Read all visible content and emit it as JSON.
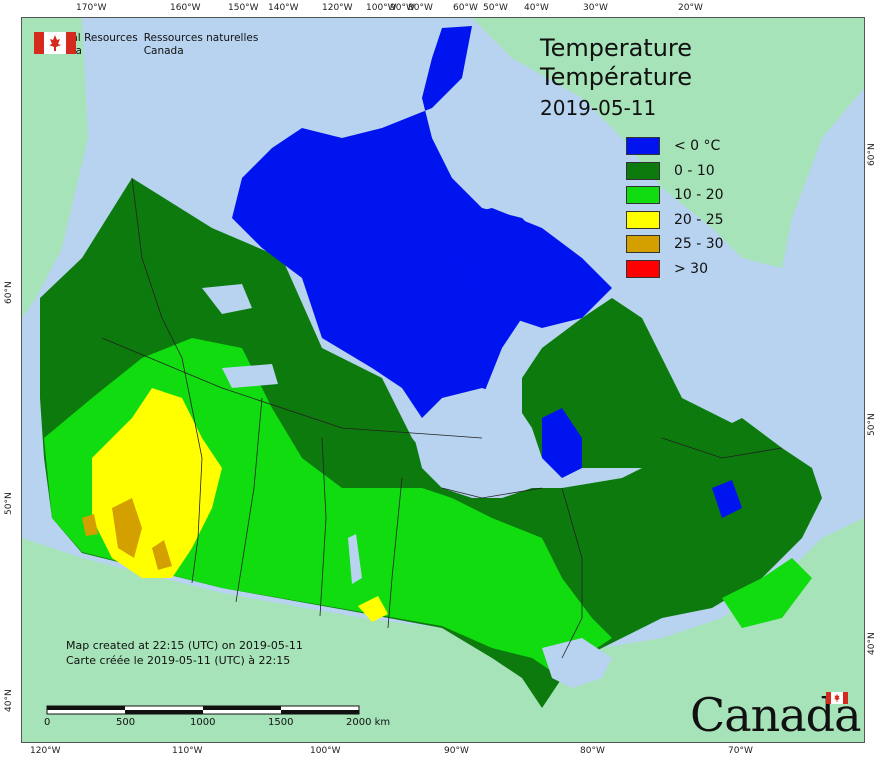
{
  "header": {
    "org_en": [
      "Natural Resources",
      "Canada"
    ],
    "org_fr": [
      "Ressources naturelles",
      "Canada"
    ]
  },
  "title": {
    "line1": "Temperature",
    "line2": "Température",
    "date": "2019-05-11"
  },
  "legend": {
    "items": [
      {
        "label": "< 0 °C",
        "color": "#0014f0"
      },
      {
        "label": "0 - 10",
        "color": "#0d7a0d"
      },
      {
        "label": "10 - 20",
        "color": "#10dc10"
      },
      {
        "label": "20 - 25",
        "color": "#ffff00"
      },
      {
        "label": "25 - 30",
        "color": "#d4a000"
      },
      {
        "label": "> 30",
        "color": "#ff0000"
      }
    ]
  },
  "credit": {
    "en": "Map created at 22:15 (UTC) on 2019-05-11",
    "fr": "Carte créée le 2019-05-11 (UTC) à 22:15"
  },
  "scale": {
    "labels": [
      "0",
      "500",
      "1000",
      "1500",
      "2000 km"
    ]
  },
  "graticule": {
    "top": [
      "170°W",
      "160°W",
      "150°W",
      "140°W",
      "120°W",
      "100°W",
      "90°W",
      "80°W",
      "60°W",
      "50°W",
      "40°W",
      "30°W",
      "20°W"
    ],
    "bottom": [
      "120°W",
      "110°W",
      "100°W",
      "90°W",
      "80°W",
      "70°W"
    ],
    "left": [
      "60°N",
      "50°N",
      "40°N"
    ],
    "right": [
      "60°N",
      "50°N",
      "40°N"
    ]
  },
  "wordmark": "Canada",
  "colors": {
    "ocean": "#b7d3ef",
    "foreign_land": "#a6e3b8",
    "accent_red": "#d52b1e"
  }
}
